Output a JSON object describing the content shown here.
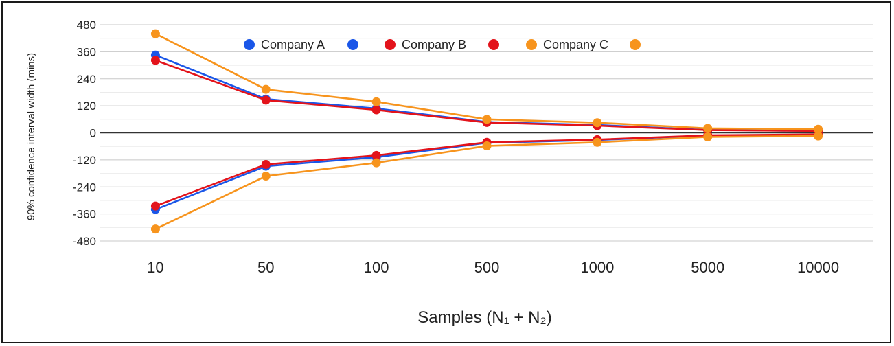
{
  "chart_data": {
    "type": "line",
    "title": "",
    "xlabel": "Samples (N₁ + N₂)",
    "ylabel": "90% confidence interval width (mins)",
    "categories": [
      "10",
      "50",
      "100",
      "500",
      "1000",
      "5000",
      "10000"
    ],
    "ylim": [
      -480,
      480
    ],
    "yticks": [
      -480,
      -360,
      -240,
      -120,
      0,
      120,
      240,
      360,
      480
    ],
    "ytick_labels": [
      "-480",
      "-360",
      "-240",
      "-120",
      "0",
      "120",
      "240",
      "360",
      "480"
    ],
    "grid": true,
    "legend_position": "top-center",
    "series": [
      {
        "name": "Company A",
        "color": "#1a56e8",
        "upper": [
          345,
          150,
          108,
          48,
          35,
          13,
          8
        ],
        "lower": [
          -340,
          -148,
          -108,
          -44,
          -32,
          -12,
          -8
        ]
      },
      {
        "name": "Company B",
        "color": "#e3131b",
        "upper": [
          322,
          145,
          102,
          46,
          32,
          12,
          8
        ],
        "lower": [
          -325,
          -140,
          -100,
          -42,
          -30,
          -11,
          -7
        ]
      },
      {
        "name": "Company C",
        "color": "#f7941d",
        "upper": [
          440,
          193,
          138,
          60,
          45,
          20,
          16
        ],
        "lower": [
          -427,
          -192,
          -133,
          -58,
          -42,
          -18,
          -14
        ]
      }
    ]
  }
}
